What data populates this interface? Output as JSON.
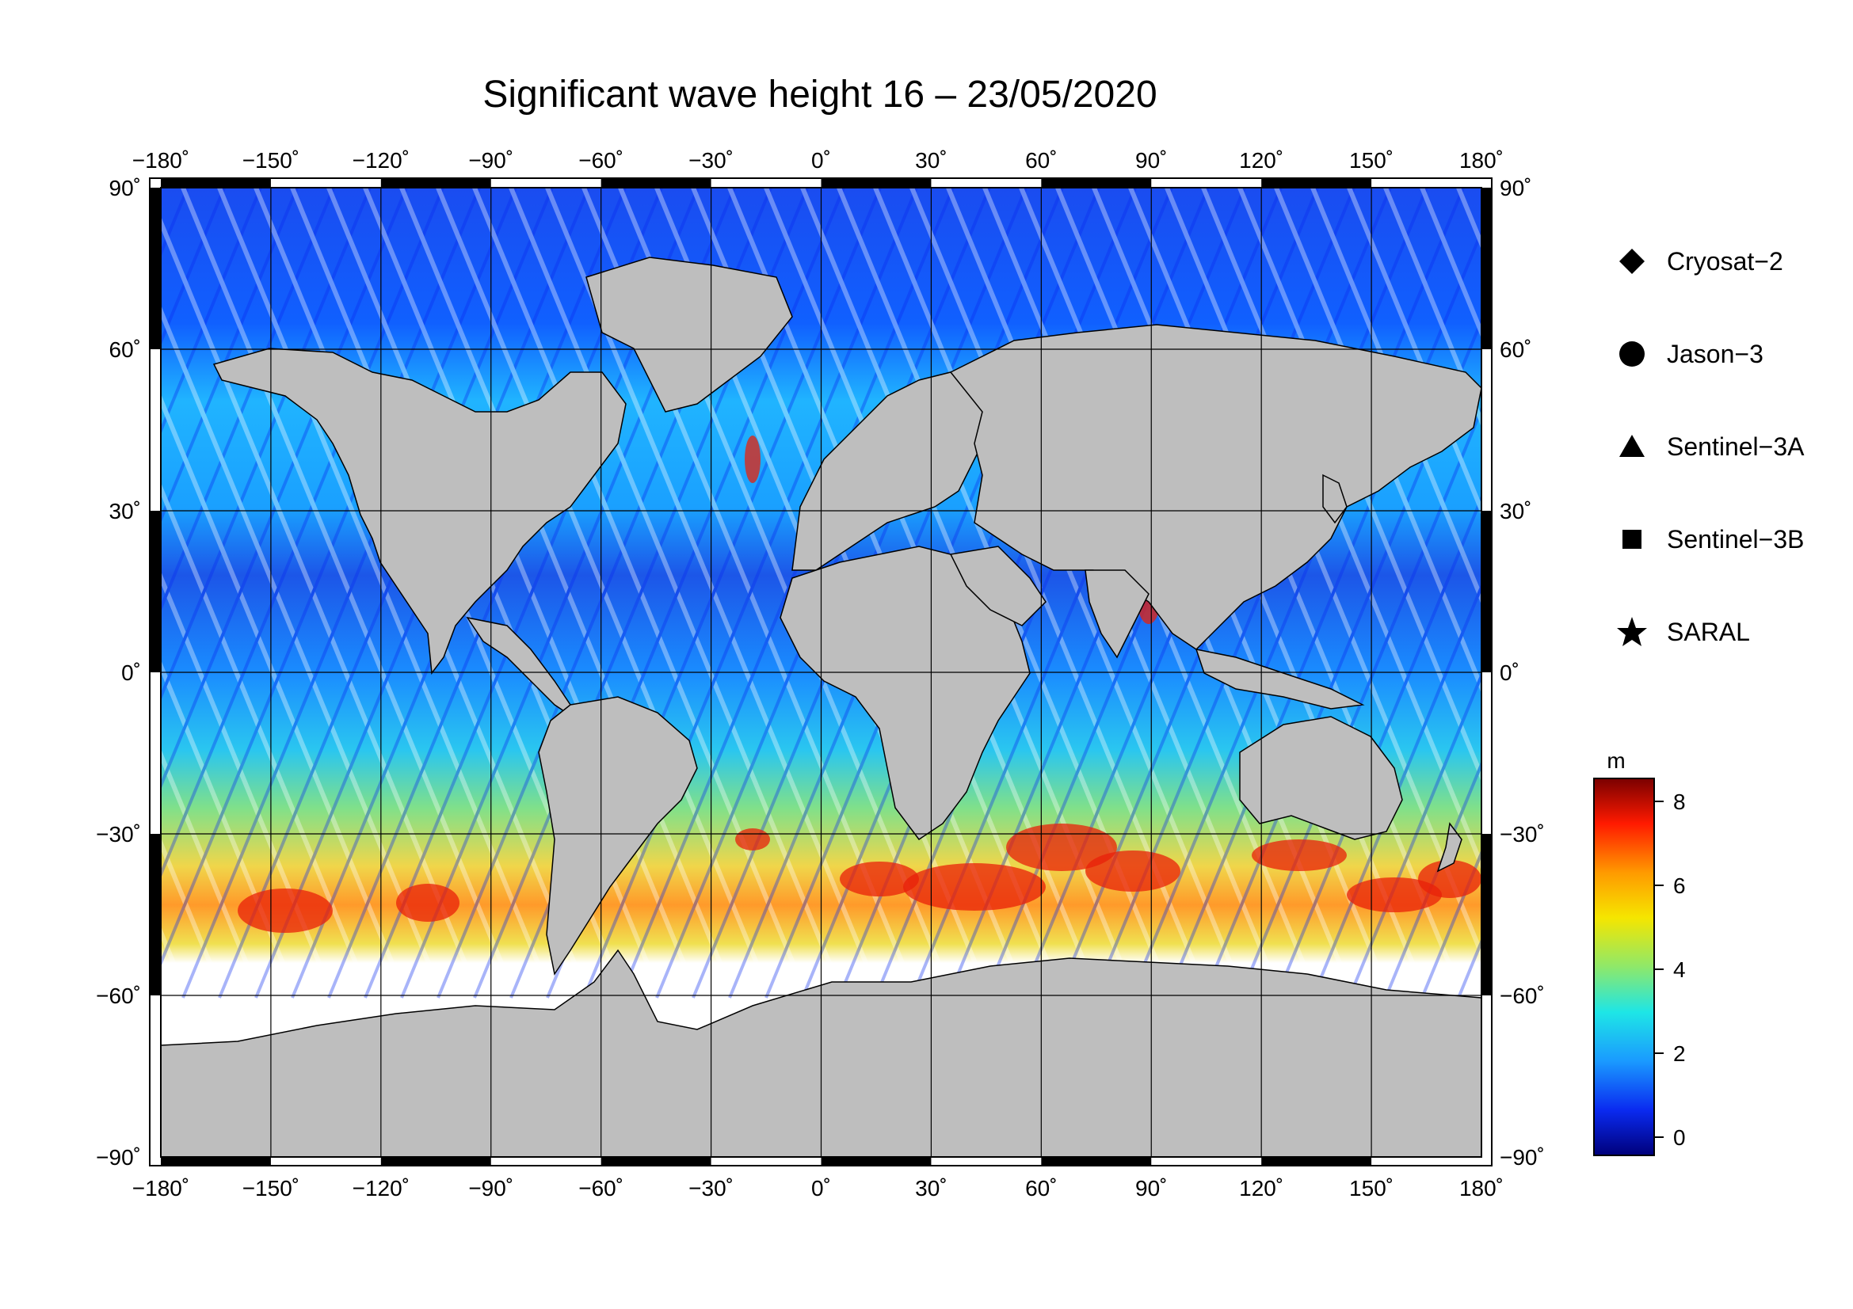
{
  "title": "Significant wave height 16 – 23/05/2020",
  "map": {
    "lon_ticks": [
      "−180",
      "−150",
      "−120",
      "−90",
      "−60",
      "−30",
      "0",
      "30",
      "60",
      "90",
      "120",
      "150",
      "180"
    ],
    "lat_ticks": [
      "90",
      "60",
      "30",
      "0",
      "−30",
      "−60",
      "−90"
    ],
    "degree_symbol": "˚",
    "land_color": "#bebebe",
    "ice_color": "#ffffff"
  },
  "legend": {
    "items": [
      {
        "symbol": "diamond-icon",
        "label": "Cryosat−2"
      },
      {
        "symbol": "circle-icon",
        "label": "Jason−3"
      },
      {
        "symbol": "triangle-icon",
        "label": "Sentinel−3A"
      },
      {
        "symbol": "square-icon",
        "label": "Sentinel−3B"
      },
      {
        "symbol": "star-icon",
        "label": "SARAL"
      }
    ]
  },
  "colorbar": {
    "unit": "m",
    "ticks": [
      "8",
      "6",
      "4",
      "2",
      "0"
    ],
    "colors": [
      "#7a0000",
      "#ff1a00",
      "#ff9a00",
      "#f5e600",
      "#8ee86a",
      "#1ee6e6",
      "#1a9aff",
      "#0a2af0",
      "#00007a"
    ]
  }
}
